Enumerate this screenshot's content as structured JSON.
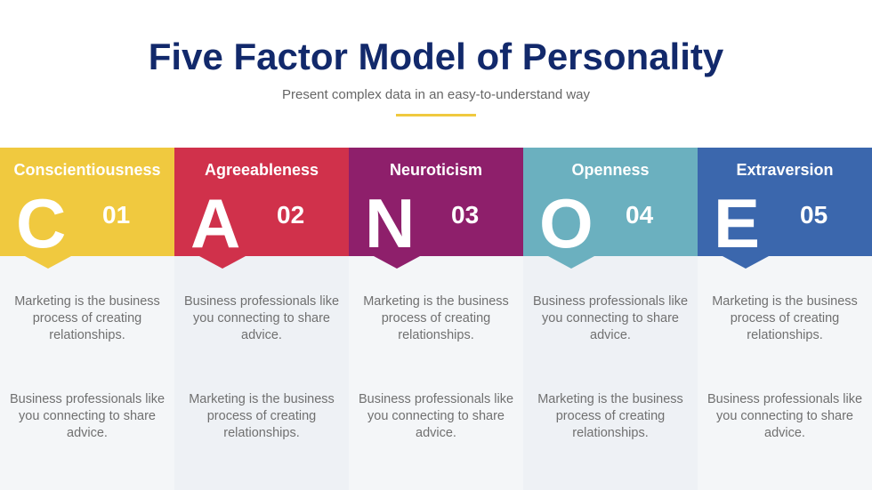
{
  "title": "Five Factor Model of Personality",
  "subtitle": "Present complex data in an easy-to-understand way",
  "accent": "#f0c93f",
  "factors": [
    {
      "name": "Conscientiousness",
      "letter": "C",
      "number": "01",
      "color": "#f0c93f",
      "text1": "Marketing is the business process of creating relationships.",
      "text2": "Business professionals like you connecting to share advice."
    },
    {
      "name": "Agreeableness",
      "letter": "A",
      "number": "02",
      "color": "#d0314b",
      "text1": "Business professionals like you connecting to share advice.",
      "text2": "Marketing is the business process of creating relationships."
    },
    {
      "name": "Neuroticism",
      "letter": "N",
      "number": "03",
      "color": "#8e1f6b",
      "text1": "Marketing is the business process of creating relationships.",
      "text2": "Business professionals like you connecting to share advice."
    },
    {
      "name": "Openness",
      "letter": "O",
      "number": "04",
      "color": "#6bb0bf",
      "text1": "Business professionals like you connecting to share advice.",
      "text2": "Marketing is the business process of creating relationships."
    },
    {
      "name": "Extraversion",
      "letter": "E",
      "number": "05",
      "color": "#3b67ad",
      "text1": "Marketing is the business process of creating relationships.",
      "text2": "Business professionals like you connecting to share advice."
    }
  ]
}
